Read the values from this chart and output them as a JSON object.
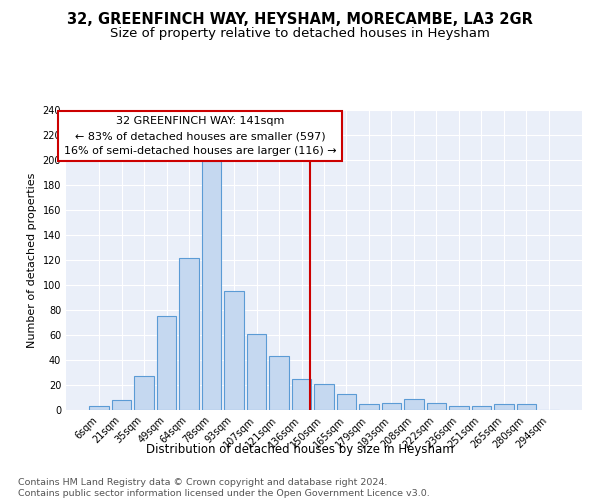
{
  "title": "32, GREENFINCH WAY, HEYSHAM, MORECAMBE, LA3 2GR",
  "subtitle": "Size of property relative to detached houses in Heysham",
  "xlabel": "Distribution of detached houses by size in Heysham",
  "ylabel": "Number of detached properties",
  "footer_line1": "Contains HM Land Registry data © Crown copyright and database right 2024.",
  "footer_line2": "Contains public sector information licensed under the Open Government Licence v3.0.",
  "bar_labels": [
    "6sqm",
    "21sqm",
    "35sqm",
    "49sqm",
    "64sqm",
    "78sqm",
    "93sqm",
    "107sqm",
    "121sqm",
    "136sqm",
    "150sqm",
    "165sqm",
    "179sqm",
    "193sqm",
    "208sqm",
    "222sqm",
    "236sqm",
    "251sqm",
    "265sqm",
    "280sqm",
    "294sqm"
  ],
  "bar_values": [
    3,
    8,
    27,
    75,
    122,
    199,
    95,
    61,
    43,
    25,
    21,
    13,
    5,
    6,
    9,
    6,
    3,
    3,
    5,
    5,
    0
  ],
  "bar_color": "#c5d8f0",
  "bar_edge_color": "#5b9bd5",
  "vline_color": "#cc0000",
  "annotation_text": "32 GREENFINCH WAY: 141sqm\n← 83% of detached houses are smaller (597)\n16% of semi-detached houses are larger (116) →",
  "annotation_box_color": "#ffffff",
  "annotation_border_color": "#cc0000",
  "annotation_fontsize": 8.0,
  "ylim": [
    0,
    240
  ],
  "yticks": [
    0,
    20,
    40,
    60,
    80,
    100,
    120,
    140,
    160,
    180,
    200,
    220,
    240
  ],
  "background_color": "#eaeff9",
  "grid_color": "#ffffff",
  "title_fontsize": 10.5,
  "subtitle_fontsize": 9.5,
  "xlabel_fontsize": 8.5,
  "ylabel_fontsize": 8.0,
  "tick_fontsize": 7.0,
  "footer_fontsize": 6.8
}
